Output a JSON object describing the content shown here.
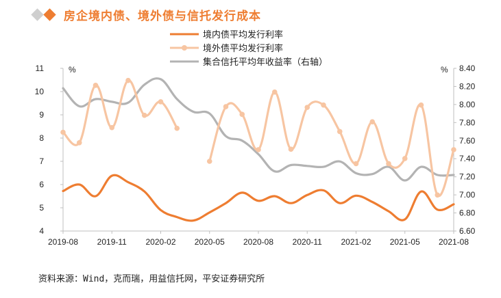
{
  "title": "房企境内债、境外债与信托发行成本",
  "source": "资料来源：Wind，克而瑞，用益信托网，平安证券研究所",
  "colors": {
    "domestic": "#ee7d31",
    "offshore": "#f7c5a2",
    "trust": "#b3b3b3",
    "title": "#ee7d31",
    "axis": "#bfbfbf"
  },
  "chart_data": {
    "type": "line",
    "title": "房企境内债、境外债与信托发行成本",
    "x_labels": [
      "2019-08",
      "2019-11",
      "2020-02",
      "2020-05",
      "2020-08",
      "2020-11",
      "2021-02",
      "2021-05",
      "2021-08"
    ],
    "x_months": [
      "2019-08",
      "2019-09",
      "2019-10",
      "2019-11",
      "2019-12",
      "2020-01",
      "2020-02",
      "2020-03",
      "2020-04",
      "2020-05",
      "2020-06",
      "2020-07",
      "2020-08",
      "2020-09",
      "2020-10",
      "2020-11",
      "2020-12",
      "2021-01",
      "2021-02",
      "2021-03",
      "2021-04",
      "2021-05",
      "2021-06",
      "2021-07",
      "2021-08"
    ],
    "left_axis": {
      "unit": "%",
      "min": 4,
      "max": 11,
      "ticks": [
        "4",
        "5",
        "6",
        "7",
        "8",
        "9",
        "10",
        "11"
      ]
    },
    "right_axis": {
      "unit": "%",
      "min": 6.6,
      "max": 8.4,
      "ticks": [
        "6.60",
        "6.80",
        "7.00",
        "7.20",
        "7.40",
        "7.60",
        "7.80",
        "8.00",
        "8.20",
        "8.40"
      ]
    },
    "series": [
      {
        "name": "境内债平均发行利率",
        "axis": "left",
        "key": "domestic",
        "values": [
          5.72,
          6.0,
          5.5,
          6.38,
          6.1,
          5.7,
          4.9,
          4.6,
          4.45,
          4.8,
          5.2,
          5.65,
          5.3,
          5.5,
          5.2,
          5.55,
          5.75,
          5.2,
          5.52,
          5.25,
          4.85,
          4.5,
          5.7,
          4.92,
          5.15
        ]
      },
      {
        "name": "境外债平均发行利率",
        "axis": "left",
        "key": "offshore",
        "values": [
          8.25,
          7.8,
          10.27,
          8.45,
          10.48,
          8.98,
          9.56,
          8.42,
          null,
          7.0,
          9.35,
          9.02,
          7.5,
          9.98,
          7.52,
          9.32,
          9.42,
          8.28,
          6.9,
          8.7,
          6.9,
          7.12,
          9.42,
          5.55,
          7.5
        ]
      },
      {
        "name": "集合信托平均年收益率（右轴）",
        "axis": "right",
        "key": "trust",
        "values": [
          8.18,
          7.98,
          8.06,
          8.03,
          8.02,
          8.22,
          8.28,
          8.06,
          7.92,
          7.9,
          7.65,
          7.6,
          7.45,
          7.26,
          7.33,
          7.32,
          7.31,
          7.37,
          7.24,
          7.23,
          7.31,
          7.16,
          7.31,
          7.22,
          7.22
        ]
      }
    ],
    "legend": "top-center"
  }
}
